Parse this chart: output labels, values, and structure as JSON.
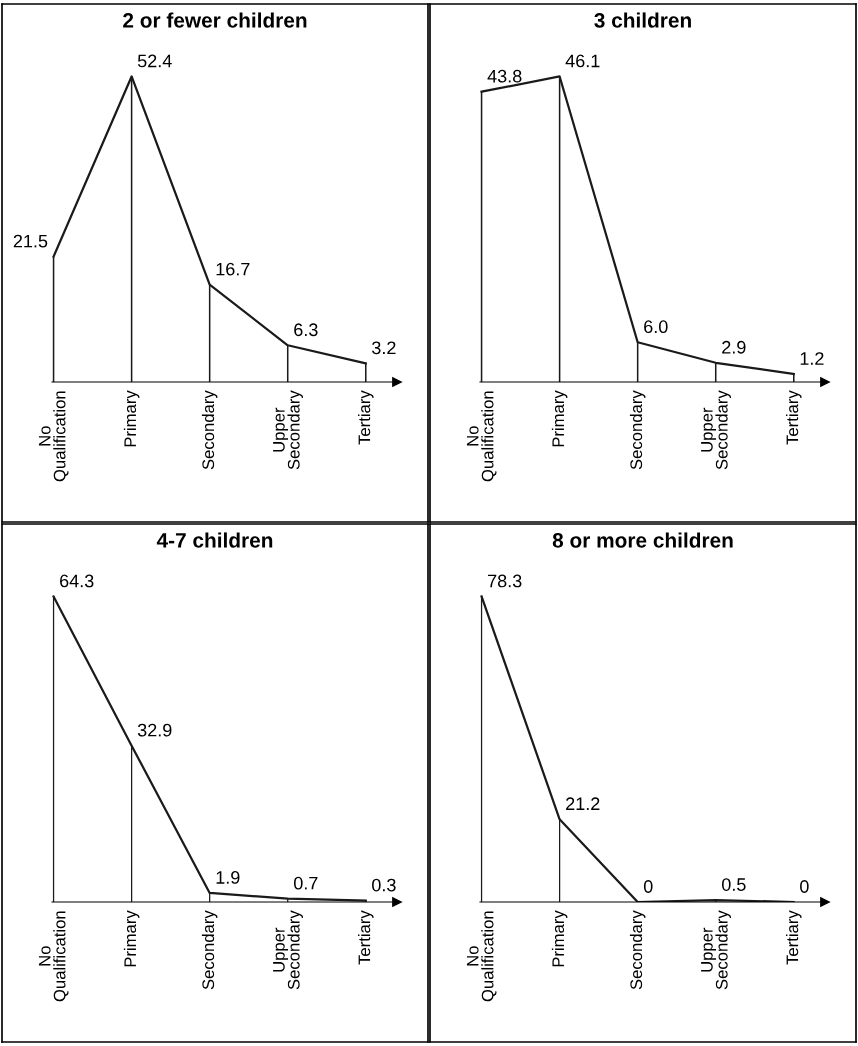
{
  "chart_data": [
    {
      "type": "line",
      "title": "2 or fewer children",
      "categories": [
        "No\nQualification",
        "Primary",
        "Secondary",
        "Upper\nSecondary",
        "Tertiary"
      ],
      "values": [
        21.5,
        52.4,
        16.7,
        6.3,
        3.2
      ],
      "color": "#1a1a1a",
      "data_labels": true,
      "grid": "x",
      "legend": false,
      "marker": "none",
      "line_style": "solid"
    },
    {
      "type": "line",
      "title": "3 children",
      "categories": [
        "No\nQualification",
        "Primary",
        "Secondary",
        "Upper\nSecondary",
        "Tertiary"
      ],
      "values": [
        43.8,
        46.1,
        6.0,
        2.9,
        1.2
      ],
      "value_labels": [
        "43.8",
        "46.1",
        "6.0",
        "2.9",
        "1.2"
      ],
      "color": "#1a1a1a",
      "grid": "x",
      "legend": false,
      "marker": "none",
      "line_style": "solid"
    },
    {
      "type": "line",
      "title": "4-7 children",
      "categories": [
        "No\nQualification",
        "Primary",
        "Secondary",
        "Upper\nSecondary",
        "Tertiary"
      ],
      "values": [
        64.3,
        32.9,
        1.9,
        0.7,
        0.3
      ],
      "color": "#1a1a1a",
      "data_labels": true,
      "grid": false,
      "legend": false,
      "marker": "none",
      "line_style": "solid"
    },
    {
      "type": "line",
      "title": "8 or more children",
      "categories": [
        "No\nQualification",
        "Primary",
        "Secondary",
        "Upper\nSecondary",
        "Tertiary"
      ],
      "values": [
        78.3,
        21.2,
        0,
        0.5,
        0
      ],
      "color": "#1a1a1a",
      "data_labels": true,
      "grid": false,
      "legend": false,
      "marker": "none",
      "line_style": "solid"
    }
  ]
}
